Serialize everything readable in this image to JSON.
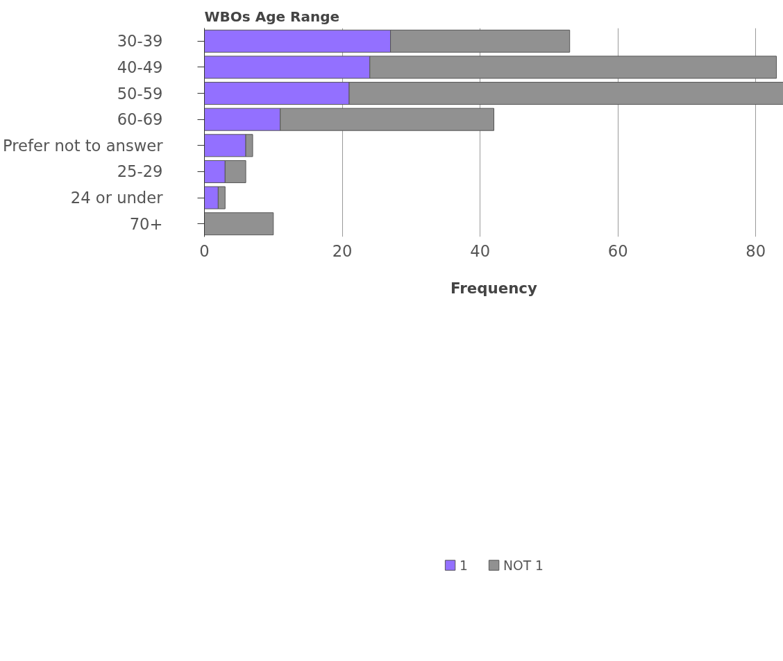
{
  "chart_data": {
    "type": "bar",
    "orientation": "horizontal",
    "stacked": true,
    "ylabel": "WBOs Age Range",
    "xlabel": "Frequency",
    "categories": [
      "30-39",
      "40-49",
      "50-59",
      "60-69",
      "Prefer not to answer",
      "25-29",
      "24 or under",
      "70+"
    ],
    "series": [
      {
        "name": "1",
        "color": "#9370ff",
        "values": [
          27,
          24,
          21,
          11,
          6,
          3,
          2,
          0
        ]
      },
      {
        "name": "NOT 1",
        "color": "#919191",
        "values": [
          26,
          59,
          63,
          31,
          1,
          3,
          1,
          10
        ]
      }
    ],
    "xlim": [
      0,
      84
    ],
    "xticks": [
      0,
      20,
      40,
      60,
      80
    ],
    "grid": "x",
    "legend": "bottom"
  }
}
